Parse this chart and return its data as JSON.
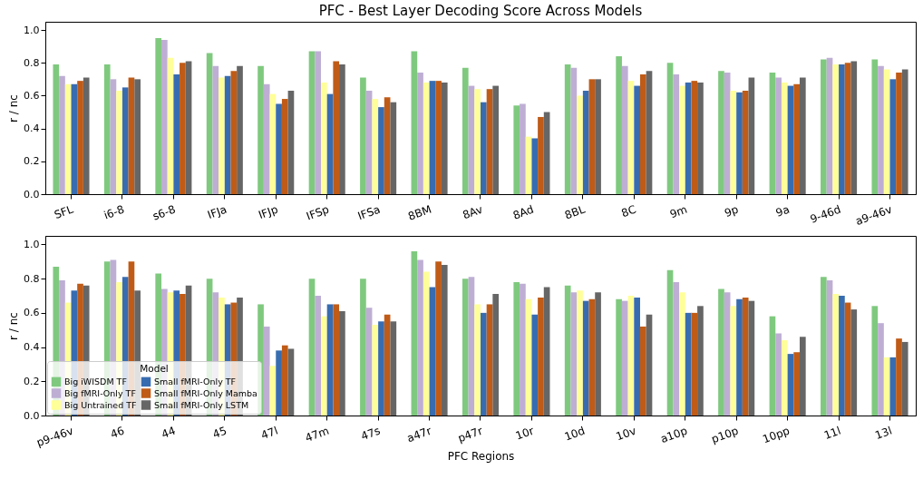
{
  "chart_data": [
    {
      "type": "bar",
      "title": "PFC - Best Layer Decoding Score Across Models",
      "ylabel": "r / nc",
      "categories": [
        "SFL",
        "i6-8",
        "s6-8",
        "IFJa",
        "IFJp",
        "IFSp",
        "IFSa",
        "8BM",
        "8Av",
        "8Ad",
        "8BL",
        "8C",
        "9m",
        "9p",
        "9a",
        "9-46d",
        "a9-46v"
      ],
      "series": [
        {
          "color": "#7fc97f",
          "values": [
            0.79,
            0.79,
            0.95,
            0.86,
            0.78,
            0.87,
            0.71,
            0.87,
            0.77,
            0.54,
            0.79,
            0.84,
            0.8,
            0.75,
            0.74,
            0.82,
            0.82
          ]
        },
        {
          "color": "#beaed4",
          "values": [
            0.72,
            0.7,
            0.94,
            0.78,
            0.67,
            0.87,
            0.63,
            0.74,
            0.66,
            0.55,
            0.77,
            0.78,
            0.73,
            0.74,
            0.71,
            0.83,
            0.78
          ]
        },
        {
          "color": "#ffff99",
          "values": [
            0.67,
            0.63,
            0.83,
            0.71,
            0.61,
            0.68,
            0.58,
            0.68,
            0.64,
            0.35,
            0.6,
            0.69,
            0.66,
            0.63,
            0.68,
            0.79,
            0.76
          ]
        },
        {
          "color": "#386cb0",
          "values": [
            0.67,
            0.65,
            0.73,
            0.72,
            0.55,
            0.61,
            0.53,
            0.69,
            0.56,
            0.34,
            0.63,
            0.66,
            0.68,
            0.62,
            0.66,
            0.79,
            0.7
          ]
        },
        {
          "color": "#bf5b17",
          "values": [
            0.69,
            0.71,
            0.8,
            0.75,
            0.58,
            0.81,
            0.59,
            0.69,
            0.64,
            0.47,
            0.7,
            0.73,
            0.69,
            0.63,
            0.67,
            0.8,
            0.74
          ]
        },
        {
          "color": "#666666",
          "values": [
            0.71,
            0.7,
            0.81,
            0.78,
            0.63,
            0.79,
            0.56,
            0.68,
            0.66,
            0.5,
            0.7,
            0.75,
            0.68,
            0.71,
            0.71,
            0.81,
            0.76
          ]
        }
      ],
      "ylim": [
        0,
        1.05
      ],
      "yticks": [
        {
          "value": 0,
          "label": "0.0"
        },
        {
          "value": 0.2,
          "label": "0.2"
        },
        {
          "value": 0.4,
          "label": "0.4"
        },
        {
          "value": 0.6,
          "label": "0.6"
        },
        {
          "value": 0.8,
          "label": "0.8"
        },
        {
          "value": 1,
          "label": "1.0"
        }
      ]
    },
    {
      "type": "bar",
      "xlabel": "PFC Regions",
      "ylabel": "r / nc",
      "legend_title": "Model",
      "legend": "bottom left",
      "categories": [
        "p9-46v",
        "46",
        "44",
        "45",
        "47l",
        "47m",
        "47s",
        "a47r",
        "p47r",
        "10r",
        "10d",
        "10v",
        "a10p",
        "p10p",
        "10pp",
        "11l",
        "13l"
      ],
      "series": [
        {
          "name": "Big iWISDM TF",
          "color": "#7fc97f",
          "values": [
            0.87,
            0.9,
            0.83,
            0.8,
            0.65,
            0.8,
            0.8,
            0.96,
            0.8,
            0.78,
            0.76,
            0.68,
            0.85,
            0.74,
            0.58,
            0.81,
            0.64
          ]
        },
        {
          "name": "Big fMRI-Only TF",
          "color": "#beaed4",
          "values": [
            0.79,
            0.91,
            0.74,
            0.72,
            0.52,
            0.7,
            0.63,
            0.91,
            0.81,
            0.77,
            0.72,
            0.67,
            0.78,
            0.72,
            0.48,
            0.79,
            0.54
          ]
        },
        {
          "name": "Big Untrained TF",
          "color": "#ffff99",
          "values": [
            0.66,
            0.78,
            0.72,
            0.69,
            0.29,
            0.58,
            0.53,
            0.84,
            0.65,
            0.68,
            0.73,
            0.7,
            0.72,
            0.64,
            0.44,
            0.71,
            0.34
          ]
        },
        {
          "name": "Small fMRI-Only TF",
          "color": "#386cb0",
          "values": [
            0.73,
            0.81,
            0.73,
            0.65,
            0.38,
            0.65,
            0.55,
            0.75,
            0.6,
            0.59,
            0.67,
            0.69,
            0.6,
            0.68,
            0.36,
            0.7,
            0.34
          ]
        },
        {
          "name": "Small fMRI-Only Mamba",
          "color": "#bf5b17",
          "values": [
            0.77,
            0.9,
            0.71,
            0.66,
            0.41,
            0.65,
            0.59,
            0.9,
            0.65,
            0.69,
            0.68,
            0.52,
            0.6,
            0.69,
            0.37,
            0.66,
            0.45
          ]
        },
        {
          "name": "Small fMRI-Only LSTM",
          "color": "#666666",
          "values": [
            0.76,
            0.73,
            0.76,
            0.69,
            0.39,
            0.61,
            0.55,
            0.88,
            0.71,
            0.75,
            0.72,
            0.59,
            0.64,
            0.67,
            0.46,
            0.62,
            0.43
          ]
        }
      ],
      "ylim": [
        0,
        1.05
      ],
      "yticks": [
        {
          "value": 0,
          "label": "0.0"
        },
        {
          "value": 0.2,
          "label": "0.2"
        },
        {
          "value": 0.4,
          "label": "0.4"
        },
        {
          "value": 0.6,
          "label": "0.6"
        },
        {
          "value": 0.8,
          "label": "0.8"
        },
        {
          "value": 1,
          "label": "1.0"
        }
      ]
    }
  ]
}
